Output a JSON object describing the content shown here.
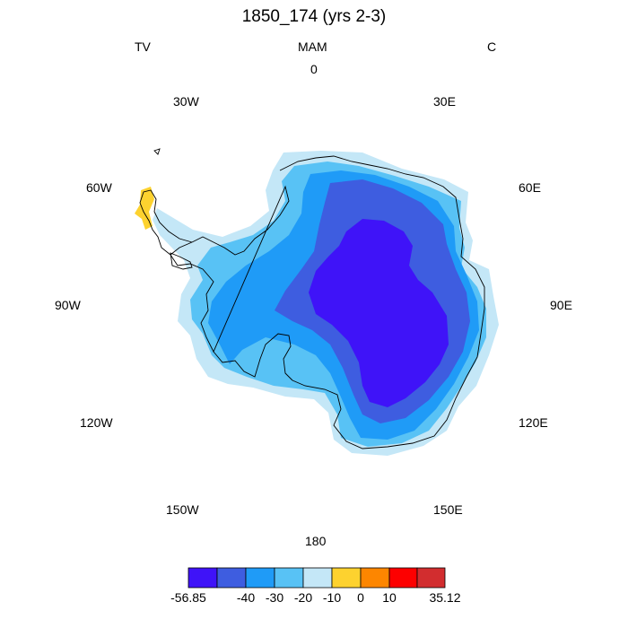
{
  "title": "1850_174 (yrs 2-3)",
  "subtitles": {
    "left": "TV",
    "center": "MAM",
    "right": "C"
  },
  "longitude_labels": {
    "lon_0": "0",
    "lon_30e": "30E",
    "lon_60e": "60E",
    "lon_90e": "90E",
    "lon_120e": "120E",
    "lon_150e": "150E",
    "lon_180": "180",
    "lon_150w": "150W",
    "lon_120w": "120W",
    "lon_90w": "90W",
    "lon_60w": "60W",
    "lon_30w": "30W"
  },
  "colorbar": {
    "colors": [
      "#3f13f8",
      "#3e5de0",
      "#1f9bf7",
      "#58c2f5",
      "#c4e7f7",
      "#fdd22f",
      "#fd8600",
      "#fd0000",
      "#d22d2f"
    ],
    "labels": [
      "-56.85",
      "-40",
      "-30",
      "-20",
      "-10",
      "0",
      "10",
      "35.12"
    ]
  },
  "fill_colors": {
    "ring_outer": "#c4e7f7",
    "ring_20": "#58c2f5",
    "ring_30": "#1f9bf7",
    "ring_40": "#3e5de0",
    "core": "#3f13f8",
    "peninsula_warm": "#fdd22f",
    "coastline": "#000000"
  }
}
